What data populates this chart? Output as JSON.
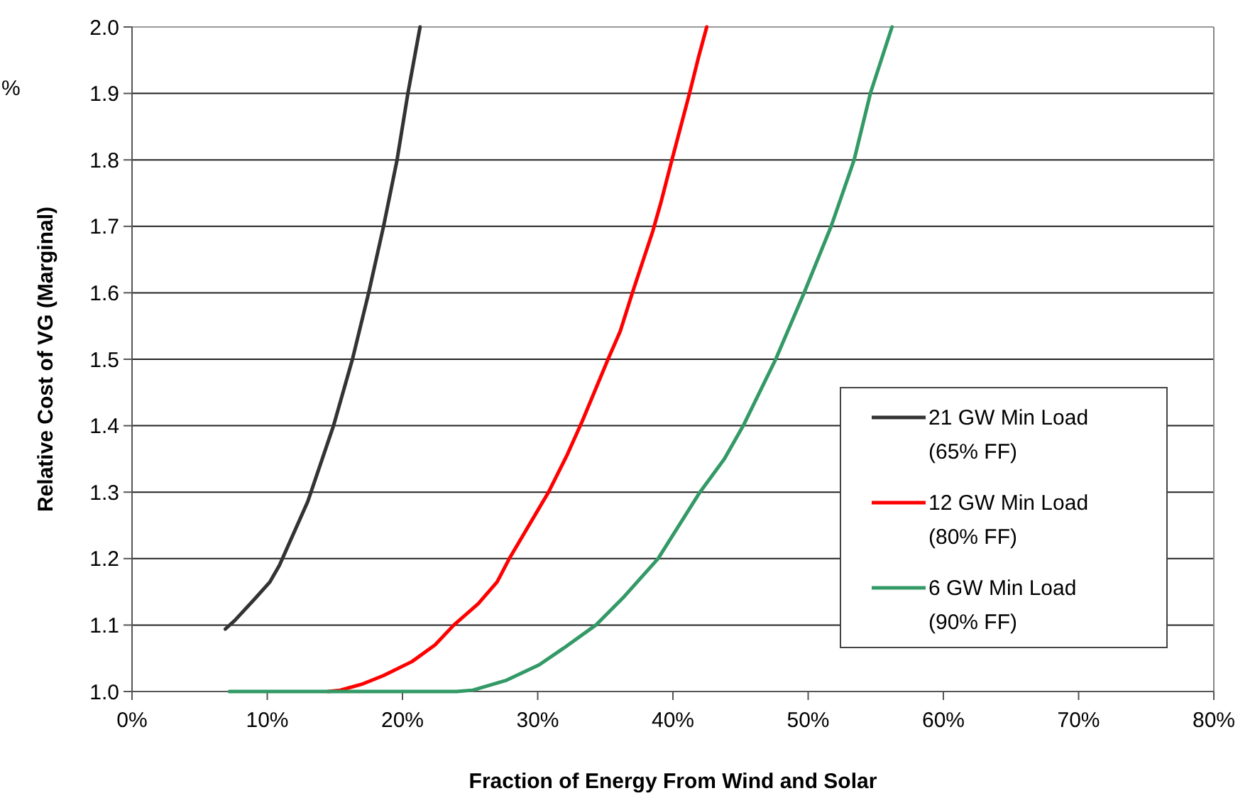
{
  "chart_data": {
    "type": "line",
    "xlabel": "Fraction of Energy From Wind and Solar",
    "ylabel": "Relative Cost of VG (Marginal)",
    "annotations": [
      "%"
    ],
    "xlim": [
      0,
      80
    ],
    "xticks": [
      {
        "value": 0,
        "label": "0%"
      },
      {
        "value": 10,
        "label": "10%"
      },
      {
        "value": 20,
        "label": "20%"
      },
      {
        "value": 30,
        "label": "30%"
      },
      {
        "value": 40,
        "label": "40%"
      },
      {
        "value": 50,
        "label": "50%"
      },
      {
        "value": 60,
        "label": "60%"
      },
      {
        "value": 70,
        "label": "70%"
      },
      {
        "value": 80,
        "label": "80%"
      }
    ],
    "ylim": [
      1.0,
      2.0
    ],
    "yticks": [
      {
        "value": 1.0,
        "label": "1.0"
      },
      {
        "value": 1.1,
        "label": "1.1"
      },
      {
        "value": 1.2,
        "label": "1.2"
      },
      {
        "value": 1.3,
        "label": "1.3"
      },
      {
        "value": 1.4,
        "label": "1.4"
      },
      {
        "value": 1.5,
        "label": "1.5"
      },
      {
        "value": 1.6,
        "label": "1.6"
      },
      {
        "value": 1.7,
        "label": "1.7"
      },
      {
        "value": 1.8,
        "label": "1.8"
      },
      {
        "value": 1.9,
        "label": "1.9"
      },
      {
        "value": 2.0,
        "label": "2.0"
      }
    ],
    "grid": "y",
    "legend": "bottom right",
    "marker": "none",
    "line_style": "solid",
    "series": [
      {
        "name": "21 GW Min Load\n(65% FF)",
        "color": "#333333",
        "x": [
          6.9,
          7.6,
          9.1,
          10.2,
          10.9,
          13.0,
          14.9,
          16.3,
          17.5,
          18.6,
          19.6,
          20.4,
          21.3
        ],
        "values": [
          1.094,
          1.107,
          1.14,
          1.165,
          1.19,
          1.286,
          1.4,
          1.5,
          1.6,
          1.7,
          1.8,
          1.9,
          2.0
        ]
      },
      {
        "name": "12 GW Min Load\n(80% FF)",
        "color": "#ff0000",
        "x": [
          14.5,
          15.4,
          17.0,
          18.6,
          20.7,
          22.4,
          23.8,
          25.6,
          27.0,
          27.9,
          30.8,
          32.2,
          33.3,
          35.2,
          36.1,
          37.0,
          38.5,
          39.1,
          39.9,
          41.2,
          41.9,
          42.5
        ],
        "values": [
          1.0,
          1.002,
          1.011,
          1.024,
          1.045,
          1.07,
          1.1,
          1.132,
          1.165,
          1.2,
          1.3,
          1.357,
          1.407,
          1.5,
          1.542,
          1.6,
          1.692,
          1.735,
          1.798,
          1.898,
          1.955,
          2.0
        ]
      },
      {
        "name": "6 GW Min Load\n(90% FF)",
        "color": "#339966",
        "x": [
          7.2,
          24.0,
          25.2,
          27.7,
          30.1,
          31.9,
          34.3,
          36.4,
          38.9,
          42.0,
          43.8,
          45.2,
          47.6,
          49.7,
          51.7,
          53.4,
          54.6,
          56.2
        ],
        "values": [
          1.0,
          1.0,
          1.002,
          1.017,
          1.04,
          1.065,
          1.1,
          1.143,
          1.2,
          1.3,
          1.35,
          1.4,
          1.5,
          1.6,
          1.7,
          1.8,
          1.9,
          2.0
        ]
      }
    ]
  }
}
